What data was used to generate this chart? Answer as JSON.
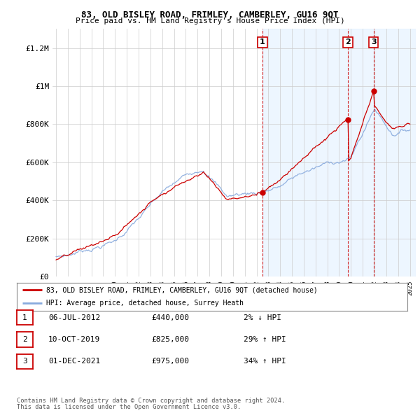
{
  "title": "83, OLD BISLEY ROAD, FRIMLEY, CAMBERLEY, GU16 9QT",
  "subtitle": "Price paid vs. HM Land Registry's House Price Index (HPI)",
  "ylim": [
    0,
    1300000
  ],
  "yticks": [
    0,
    200000,
    400000,
    600000,
    800000,
    1000000,
    1200000
  ],
  "ytick_labels": [
    "£0",
    "£200K",
    "£400K",
    "£600K",
    "£800K",
    "£1M",
    "£1.2M"
  ],
  "line1_color": "#cc0000",
  "line2_color": "#88aadd",
  "shade_color": "#ddeeff",
  "sale_marker_color": "#cc0000",
  "sales": [
    {
      "year": 2012.5,
      "value": 440000,
      "label": "1"
    },
    {
      "year": 2019.75,
      "value": 825000,
      "label": "2"
    },
    {
      "year": 2021.92,
      "value": 975000,
      "label": "3"
    }
  ],
  "legend_line1": "83, OLD BISLEY ROAD, FRIMLEY, CAMBERLEY, GU16 9QT (detached house)",
  "legend_line2": "HPI: Average price, detached house, Surrey Heath",
  "table_rows": [
    {
      "num": "1",
      "date": "06-JUL-2012",
      "price": "£440,000",
      "change": "2% ↓ HPI"
    },
    {
      "num": "2",
      "date": "10-OCT-2019",
      "price": "£825,000",
      "change": "29% ↑ HPI"
    },
    {
      "num": "3",
      "date": "01-DEC-2021",
      "price": "£975,000",
      "change": "34% ↑ HPI"
    }
  ],
  "footer1": "Contains HM Land Registry data © Crown copyright and database right 2024.",
  "footer2": "This data is licensed under the Open Government Licence v3.0.",
  "vline_color": "#cc0000",
  "background_color": "#ffffff",
  "grid_color": "#cccccc",
  "xlim_left": 1994.7,
  "xlim_right": 2025.5
}
